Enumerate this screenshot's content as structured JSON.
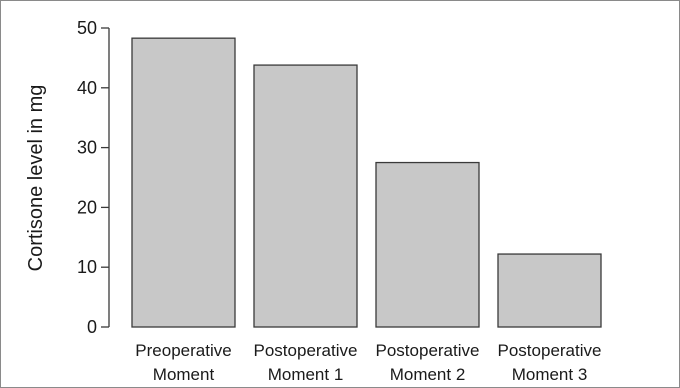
{
  "chart_data": {
    "type": "bar",
    "categories": [
      [
        "Preoperative",
        "Moment"
      ],
      [
        "Postoperative",
        "Moment 1"
      ],
      [
        "Postoperative",
        "Moment 2"
      ],
      [
        "Postoperative",
        "Moment 3"
      ]
    ],
    "values": [
      48.3,
      43.8,
      27.5,
      12.2
    ],
    "title": "",
    "xlabel": "",
    "ylabel": "Cortisone level in mg",
    "ylim": [
      0,
      50
    ],
    "yticks": [
      0,
      10,
      20,
      30,
      40,
      50
    ],
    "grid": false,
    "legend": "none",
    "colors": {
      "bar_fill": "#c8c8c8",
      "bar_stroke": "#3a3a3a",
      "axis": "#3a3a3a",
      "frame": "#8a8a8a"
    }
  }
}
